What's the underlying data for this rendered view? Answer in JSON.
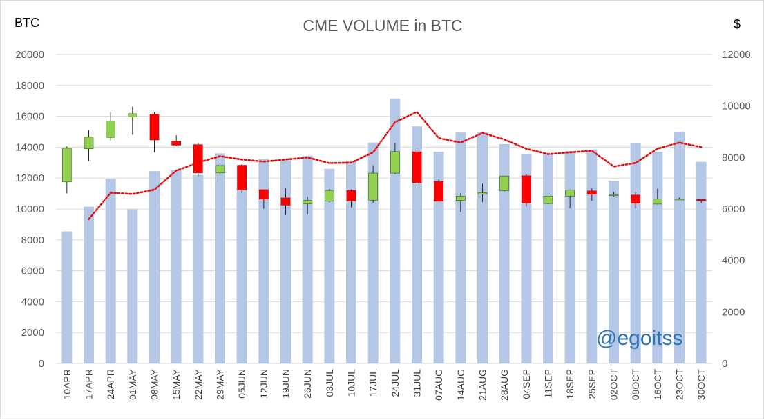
{
  "chart_data": {
    "type": "bar",
    "title": "CME VOLUME in BTC",
    "left_unit": "BTC",
    "right_unit": "$",
    "watermark": "@egoitss",
    "categories": [
      "10APR",
      "17APR",
      "24APR",
      "01MAY",
      "08MAY",
      "15MAY",
      "22MAY",
      "29MAY",
      "05JUN",
      "12JUN",
      "19JUN",
      "26JUN",
      "03JUL",
      "10JUL",
      "17JUL",
      "24JUL",
      "31JUL",
      "07AUG",
      "14AUG",
      "21AUG",
      "28AUG",
      "04SEP",
      "11SEP",
      "18SEP",
      "25SEP",
      "02OCT",
      "09OCT",
      "16OCT",
      "23OCT",
      "30OCT"
    ],
    "y_left": {
      "min": 0,
      "max": 20000,
      "step": 2000,
      "ticks": [
        "0",
        "2000",
        "4000",
        "6000",
        "8000",
        "10000",
        "12000",
        "14000",
        "16000",
        "18000",
        "20000"
      ]
    },
    "y_right": {
      "min": 0,
      "max": 12000,
      "step": 2000,
      "ticks": [
        "0",
        "2000",
        "4000",
        "6000",
        "8000",
        "10000",
        "12000"
      ]
    },
    "grid": true,
    "series": [
      {
        "name": "",
        "kind": "bar",
        "axis": "left",
        "values": [
          8550,
          10150,
          11950,
          9980,
          12450,
          12550,
          12200,
          13600,
          12800,
          13250,
          13150,
          13450,
          12600,
          13100,
          14300,
          17150,
          15350,
          13700,
          14950,
          14950,
          14200,
          13550,
          13550,
          13750,
          13850,
          11800,
          14250,
          13700,
          15000,
          13050
        ]
      },
      {
        "name": "",
        "kind": "line",
        "style": "dotted",
        "axis": "right",
        "values": [
          null,
          5600,
          6630,
          6580,
          6750,
          7490,
          7800,
          8050,
          7920,
          7840,
          7920,
          8000,
          7780,
          7800,
          8200,
          9370,
          9770,
          8750,
          8580,
          8950,
          8700,
          8340,
          8130,
          8200,
          8260,
          7650,
          7790,
          8340,
          8580,
          8400
        ]
      },
      {
        "name": "",
        "kind": "candlestick",
        "axis": "right",
        "open": [
          7050,
          8340,
          8780,
          9570,
          9680,
          8630,
          8500,
          7400,
          7700,
          6750,
          6430,
          6200,
          6300,
          6720,
          6340,
          7390,
          8220,
          7070,
          6330,
          6570,
          6710,
          7290,
          6210,
          6500,
          6700,
          6560,
          6540,
          6190,
          6390,
          6370
        ],
        "close": [
          8360,
          8790,
          9410,
          9700,
          8680,
          8480,
          7400,
          7690,
          6740,
          6380,
          6150,
          6340,
          6720,
          6310,
          7390,
          8230,
          7020,
          6300,
          6500,
          6630,
          7280,
          6230,
          6500,
          6740,
          6570,
          6560,
          6220,
          6390,
          6390,
          6350
        ],
        "high": [
          8430,
          9060,
          9760,
          9980,
          9760,
          8860,
          8560,
          7790,
          7740,
          6740,
          6810,
          6470,
          6770,
          6760,
          7700,
          8560,
          8340,
          7140,
          6620,
          6980,
          7290,
          7350,
          6570,
          6760,
          6800,
          6660,
          6650,
          6790,
          6440,
          6400
        ],
        "low": [
          6600,
          7860,
          8660,
          8880,
          8200,
          8440,
          7270,
          7050,
          6610,
          6010,
          5770,
          5800,
          6260,
          6060,
          6240,
          7350,
          6910,
          6280,
          5880,
          6270,
          6680,
          6090,
          6190,
          6030,
          6320,
          6480,
          6020,
          6180,
          6400,
          6220
        ],
        "up_color": "#92d050",
        "down_color": "#ff0000"
      }
    ],
    "colors": {
      "bar": "#b4c7e7",
      "line": "#e01010",
      "grid": "#d9d9d9",
      "text": "#595959"
    }
  }
}
